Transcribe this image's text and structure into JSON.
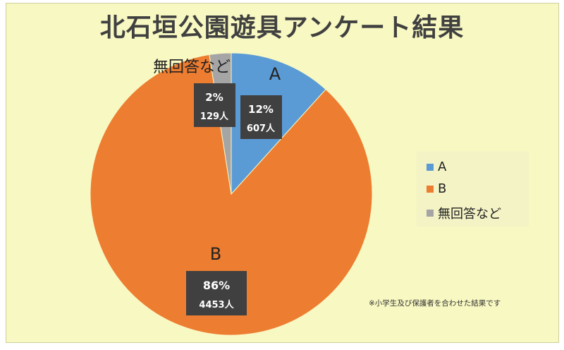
{
  "chart_data": {
    "type": "pie",
    "title": "北石垣公園遊具アンケート結果",
    "slices": [
      {
        "label": "A",
        "percent": "12%",
        "count": "607人",
        "value": 607,
        "color": "#5b9bd5"
      },
      {
        "label": "B",
        "percent": "86%",
        "count": "4453人",
        "value": 4453,
        "color": "#ed7d31"
      },
      {
        "label": "無回答など",
        "percent": "2%",
        "count": "129人",
        "value": 129,
        "color": "#a5a5a5"
      }
    ],
    "legend": {
      "placement": "right"
    },
    "note": "※小学生及び保護者を合わせた結果です"
  }
}
